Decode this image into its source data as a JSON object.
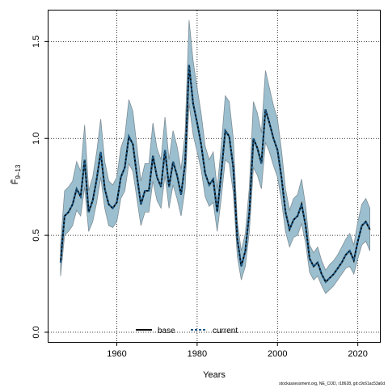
{
  "chart_data": {
    "type": "line",
    "title": "",
    "xlabel": "Years",
    "ylabel": "F̄",
    "ylabel_sub": "9–13",
    "xlim": [
      1943,
      2025.5
    ],
    "ylim": [
      -0.05,
      1.66
    ],
    "xticks": [
      1960,
      1980,
      2000,
      2020
    ],
    "yticks": [
      0.0,
      0.5,
      1.0,
      1.5
    ],
    "ytick_labels": [
      "0.0",
      "0.5",
      "1.0",
      "1.5"
    ],
    "grid": true,
    "legend_position": "bottom-center",
    "colors": {
      "band": "#9bbfcf",
      "band_edge": "#7e8d96",
      "base": "#000000",
      "current": "#1a5a8a",
      "grid": "#000000"
    },
    "x": [
      1946,
      1947,
      1948,
      1949,
      1950,
      1951,
      1952,
      1953,
      1954,
      1955,
      1956,
      1957,
      1958,
      1959,
      1960,
      1961,
      1962,
      1963,
      1964,
      1965,
      1966,
      1967,
      1968,
      1969,
      1970,
      1971,
      1972,
      1973,
      1974,
      1975,
      1976,
      1977,
      1978,
      1979,
      1980,
      1981,
      1982,
      1983,
      1984,
      1985,
      1986,
      1987,
      1988,
      1989,
      1990,
      1991,
      1992,
      1993,
      1994,
      1995,
      1996,
      1997,
      1998,
      1999,
      2000,
      2001,
      2002,
      2003,
      2004,
      2005,
      2006,
      2007,
      2008,
      2009,
      2010,
      2011,
      2012,
      2013,
      2014,
      2015,
      2016,
      2017,
      2018,
      2019,
      2020,
      2021,
      2022,
      2023
    ],
    "series": [
      {
        "name": "base",
        "values": [
          0.36,
          0.6,
          0.62,
          0.66,
          0.74,
          0.7,
          0.89,
          0.62,
          0.68,
          0.79,
          0.93,
          0.74,
          0.66,
          0.64,
          0.67,
          0.8,
          0.85,
          1.01,
          0.97,
          0.81,
          0.66,
          0.73,
          0.73,
          0.91,
          0.8,
          0.75,
          0.94,
          0.75,
          0.88,
          0.81,
          0.71,
          0.87,
          1.38,
          1.18,
          1.08,
          0.97,
          0.82,
          0.76,
          0.79,
          0.62,
          0.82,
          1.04,
          1.01,
          0.85,
          0.48,
          0.34,
          0.42,
          0.62,
          1.0,
          0.95,
          0.87,
          1.15,
          1.08,
          1.0,
          0.94,
          0.8,
          0.62,
          0.53,
          0.58,
          0.6,
          0.66,
          0.55,
          0.38,
          0.34,
          0.36,
          0.3,
          0.26,
          0.28,
          0.3,
          0.33,
          0.36,
          0.4,
          0.42,
          0.37,
          0.47,
          0.55,
          0.57,
          0.53
        ]
      },
      {
        "name": "current",
        "values": [
          0.36,
          0.6,
          0.62,
          0.66,
          0.74,
          0.7,
          0.89,
          0.62,
          0.68,
          0.79,
          0.93,
          0.74,
          0.66,
          0.64,
          0.67,
          0.8,
          0.85,
          1.01,
          0.97,
          0.81,
          0.66,
          0.73,
          0.73,
          0.91,
          0.8,
          0.75,
          0.94,
          0.75,
          0.88,
          0.81,
          0.71,
          0.87,
          1.38,
          1.18,
          1.08,
          0.97,
          0.82,
          0.76,
          0.79,
          0.62,
          0.82,
          1.04,
          1.01,
          0.85,
          0.48,
          0.34,
          0.42,
          0.62,
          1.0,
          0.95,
          0.87,
          1.15,
          1.08,
          1.0,
          0.94,
          0.8,
          0.62,
          0.53,
          0.58,
          0.6,
          0.66,
          0.55,
          0.38,
          0.34,
          0.36,
          0.3,
          0.26,
          0.28,
          0.3,
          0.33,
          0.36,
          0.4,
          0.42,
          0.37,
          0.47,
          0.55,
          0.57,
          0.53
        ]
      }
    ],
    "band": {
      "lower": [
        0.29,
        0.5,
        0.52,
        0.55,
        0.63,
        0.6,
        0.75,
        0.52,
        0.57,
        0.67,
        0.8,
        0.64,
        0.55,
        0.54,
        0.57,
        0.69,
        0.73,
        0.87,
        0.83,
        0.69,
        0.55,
        0.62,
        0.62,
        0.78,
        0.68,
        0.64,
        0.81,
        0.64,
        0.76,
        0.69,
        0.6,
        0.74,
        1.18,
        1.02,
        0.93,
        0.84,
        0.7,
        0.65,
        0.67,
        0.52,
        0.69,
        0.89,
        0.87,
        0.72,
        0.39,
        0.27,
        0.34,
        0.52,
        0.85,
        0.81,
        0.74,
        0.98,
        0.93,
        0.86,
        0.8,
        0.68,
        0.52,
        0.44,
        0.49,
        0.5,
        0.56,
        0.46,
        0.31,
        0.27,
        0.29,
        0.24,
        0.2,
        0.22,
        0.24,
        0.27,
        0.3,
        0.33,
        0.34,
        0.3,
        0.38,
        0.45,
        0.47,
        0.42
      ],
      "upper": [
        0.45,
        0.73,
        0.75,
        0.78,
        0.88,
        0.83,
        1.07,
        0.73,
        0.8,
        0.93,
        1.1,
        0.88,
        0.78,
        0.76,
        0.8,
        0.95,
        1.01,
        1.2,
        1.14,
        0.96,
        0.78,
        0.87,
        0.87,
        1.08,
        0.95,
        0.89,
        1.11,
        0.89,
        1.04,
        0.96,
        0.84,
        1.03,
        1.61,
        1.4,
        1.26,
        1.13,
        0.96,
        0.89,
        0.93,
        0.74,
        0.96,
        1.22,
        1.19,
        1.0,
        0.57,
        0.42,
        0.51,
        0.75,
        1.19,
        1.13,
        1.03,
        1.35,
        1.26,
        1.17,
        1.1,
        0.94,
        0.74,
        0.63,
        0.69,
        0.71,
        0.79,
        0.65,
        0.45,
        0.41,
        0.44,
        0.37,
        0.32,
        0.35,
        0.37,
        0.4,
        0.44,
        0.48,
        0.51,
        0.45,
        0.57,
        0.66,
        0.69,
        0.64
      ]
    }
  },
  "footer": {
    "text": "stockassessment.org, NE_COD, r18628, git:c9c61ac53a0d"
  }
}
